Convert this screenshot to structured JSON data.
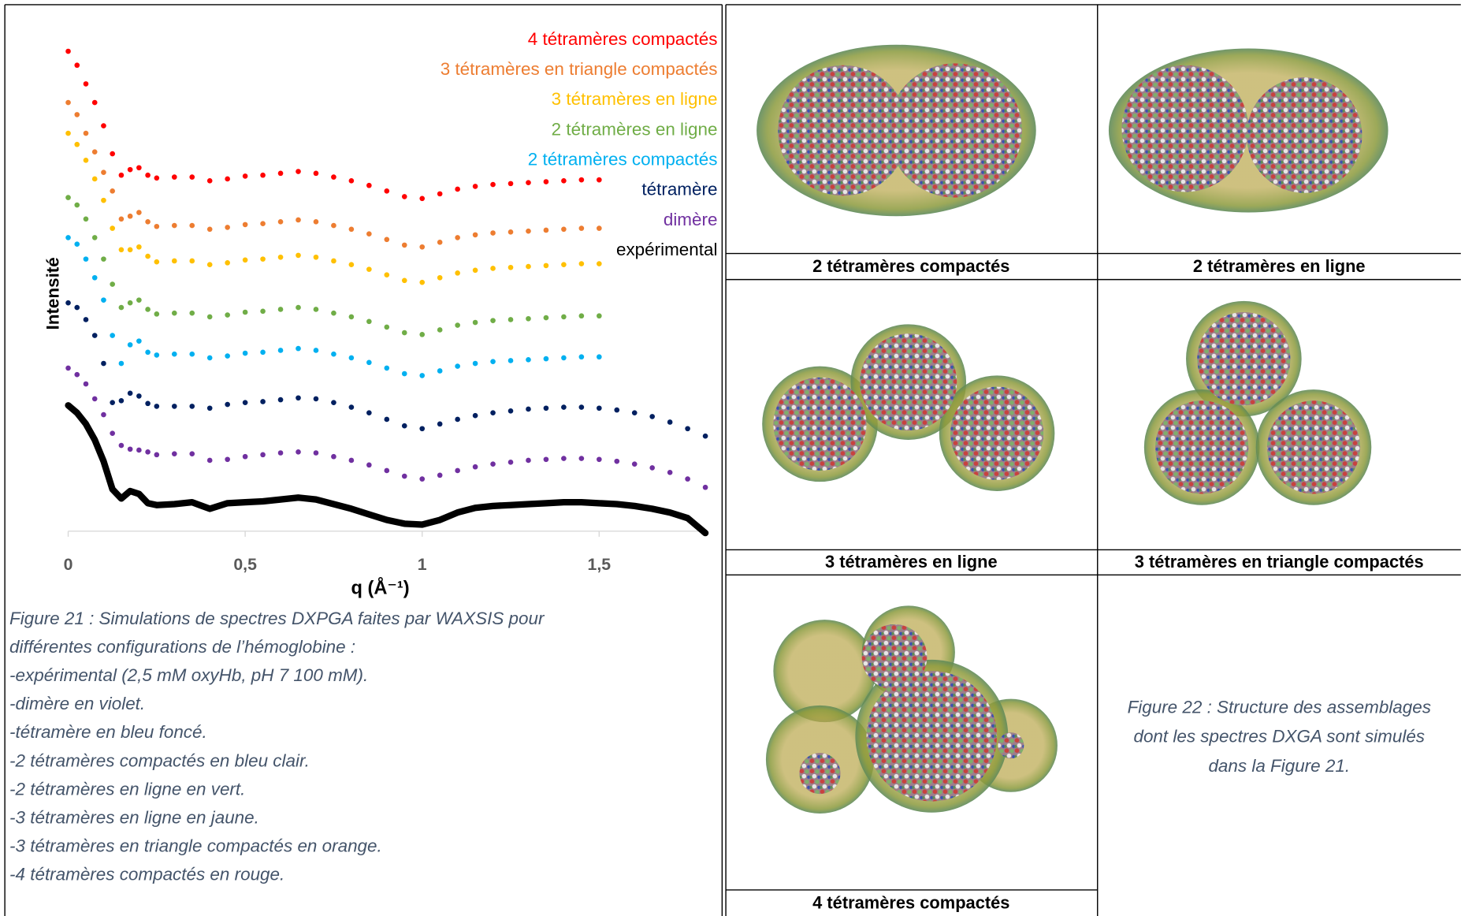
{
  "chart_data": {
    "type": "scatter",
    "y_label": "Intensité",
    "x_label": "q (Å⁻¹)",
    "xlim": [
      0,
      1.8
    ],
    "xticks": [
      0,
      {
        "value": 0.5,
        "label": "0,5"
      },
      1,
      {
        "value": 1.5,
        "label": "1,5"
      }
    ],
    "ylim": [
      -2,
      104
    ],
    "legend_position": "top-right",
    "x": [
      0,
      0.025,
      0.05,
      0.075,
      0.1,
      0.125,
      0.15,
      0.175,
      0.2,
      0.225,
      0.25,
      0.3,
      0.35,
      0.4,
      0.45,
      0.5,
      0.55,
      0.6,
      0.65,
      0.7,
      0.75,
      0.8,
      0.85,
      0.9,
      0.95,
      1.0,
      1.05,
      1.1,
      1.15,
      1.2,
      1.25,
      1.3,
      1.35,
      1.4,
      1.45,
      1.5,
      1.55,
      1.6,
      1.65,
      1.7,
      1.75,
      1.8
    ],
    "series": [
      {
        "name": "4 tétramères compactés",
        "color": "#ff0000",
        "mode": "markers",
        "values": [
          103,
          100,
          96,
          92,
          87,
          81,
          76.4,
          77.6,
          78,
          76.4,
          75.8,
          76,
          76,
          75.2,
          75.6,
          76.2,
          76.4,
          76.8,
          77.2,
          76.8,
          76,
          75.2,
          74.2,
          73,
          71.8,
          71.4,
          72.4,
          73.4,
          74,
          74.4,
          74.6,
          74.8,
          75,
          75.2,
          75.4,
          75.4,
          null,
          null,
          null,
          null,
          null,
          null
        ]
      },
      {
        "name": "3 tétramères en triangle compactés",
        "color": "#ed7d31",
        "mode": "markers",
        "values": [
          92,
          89.4,
          85.4,
          81.4,
          77,
          73,
          67,
          67.6,
          68.4,
          66.4,
          65.4,
          65.6,
          65.6,
          64.8,
          65.2,
          65.8,
          66,
          66.4,
          66.8,
          66.4,
          65.6,
          64.8,
          63.8,
          62.6,
          61.4,
          61,
          62,
          63,
          63.6,
          64,
          64.2,
          64.4,
          64.6,
          64.8,
          65,
          65,
          null,
          null,
          null,
          null,
          null,
          null
        ]
      },
      {
        "name": "3 tétramères en ligne",
        "color": "#ffc000",
        "mode": "markers",
        "values": [
          85.4,
          83,
          79.6,
          75.6,
          71,
          65,
          60.4,
          60.4,
          61,
          59,
          57.8,
          58,
          58,
          57.2,
          57.6,
          58.2,
          58.4,
          58.8,
          59.2,
          58.8,
          58,
          57.2,
          56.2,
          55,
          53.8,
          53.4,
          54.4,
          55.4,
          56,
          56.4,
          56.6,
          56.8,
          57,
          57.2,
          57.4,
          57.4,
          null,
          null,
          null,
          null,
          null,
          null
        ]
      },
      {
        "name": "2 tétramères en ligne",
        "color": "#70ad47",
        "mode": "markers",
        "values": [
          71.6,
          70,
          67,
          63,
          58.4,
          53,
          48,
          49,
          49.6,
          47.6,
          46.6,
          46.8,
          46.8,
          46,
          46.4,
          47,
          47.2,
          47.6,
          48,
          47.6,
          46.8,
          46,
          45,
          43.8,
          42.6,
          42.2,
          43.2,
          44.2,
          44.8,
          45.2,
          45.4,
          45.6,
          45.8,
          46,
          46.2,
          46.2,
          null,
          null,
          null,
          null,
          null,
          null
        ]
      },
      {
        "name": "2 tétramères compactés",
        "color": "#00b0f0",
        "mode": "markers",
        "values": [
          63,
          61.6,
          58.4,
          54.4,
          49.6,
          42,
          36,
          40,
          40.8,
          38.4,
          37.8,
          38,
          38,
          37.2,
          37.6,
          38.2,
          38.4,
          38.8,
          39.2,
          38.8,
          38,
          37.2,
          36.2,
          35,
          33.8,
          33.4,
          34.4,
          35.4,
          36,
          36.4,
          36.6,
          36.8,
          37,
          37.2,
          37.4,
          37.4,
          null,
          null,
          null,
          null,
          null,
          null
        ]
      },
      {
        "name": "tétramère",
        "color": "#002060",
        "mode": "markers",
        "values": [
          49,
          48,
          45.4,
          42,
          36,
          27.6,
          28,
          29.6,
          29,
          27.4,
          26.8,
          26.8,
          26.8,
          26.4,
          27.2,
          27.6,
          27.8,
          28.2,
          28.6,
          28.4,
          27.6,
          26.6,
          25.4,
          24,
          22.6,
          22,
          23,
          24,
          24.8,
          25.4,
          25.8,
          26.2,
          26.4,
          26.6,
          26.6,
          26.4,
          26,
          25.4,
          24.6,
          23.4,
          22,
          20.4
        ]
      },
      {
        "name": "dimère",
        "color": "#7030a0",
        "mode": "markers",
        "values": [
          35,
          33.6,
          31.6,
          28.4,
          25,
          21,
          18.4,
          17.6,
          17.4,
          17,
          16.4,
          16.6,
          16.6,
          15.2,
          15.4,
          16,
          16.4,
          16.8,
          17,
          16.8,
          16,
          15.2,
          14.2,
          13,
          11.8,
          11.2,
          12,
          13,
          13.8,
          14.4,
          14.8,
          15.2,
          15.4,
          15.6,
          15.6,
          15.4,
          15,
          14.4,
          13.6,
          12.6,
          11.2,
          9.4
        ]
      },
      {
        "name": "expérimental",
        "color": "#000000",
        "mode": "line",
        "values": [
          27,
          25.4,
          23,
          19.6,
          15,
          9,
          7,
          8.6,
          8,
          6,
          5.6,
          5.8,
          6.2,
          4.8,
          6,
          6.2,
          6.4,
          6.8,
          7.2,
          6.8,
          5.8,
          4.8,
          3.6,
          2.4,
          1.6,
          1.4,
          2.4,
          4,
          5,
          5.4,
          5.6,
          5.8,
          6,
          6.2,
          6.2,
          6,
          5.8,
          5.4,
          4.8,
          4,
          2.8,
          -0.4
        ]
      }
    ]
  },
  "figure21_caption": [
    "Figure 21 : Simulations de spectres DXPGA faites par WAXSIS pour",
    "différentes configurations de l’hémoglobine :",
    "-expérimental (2,5 mM oxyHb, pH 7 100 mM).",
    "-dimère en violet.",
    "-tétramère en bleu foncé.",
    "-2 tétramères compactés en bleu clair.",
    "-2 tétramères en ligne en vert.",
    "-3 tétramères en ligne en jaune.",
    "-3 tétramères en triangle compactés en orange.",
    "-4 tétramères compactés en rouge."
  ],
  "structures_table": {
    "cells": [
      "2 tétramères compactés",
      "2 tétramères en ligne",
      "3 tétramères en ligne",
      "3 tétramères en triangle compactés",
      "4 tétramères compactés"
    ],
    "figure22_caption": [
      "Figure 22 : Structure des assemblages",
      "dont les spectres DXGA sont simulés",
      "dans la Figure 21."
    ]
  }
}
